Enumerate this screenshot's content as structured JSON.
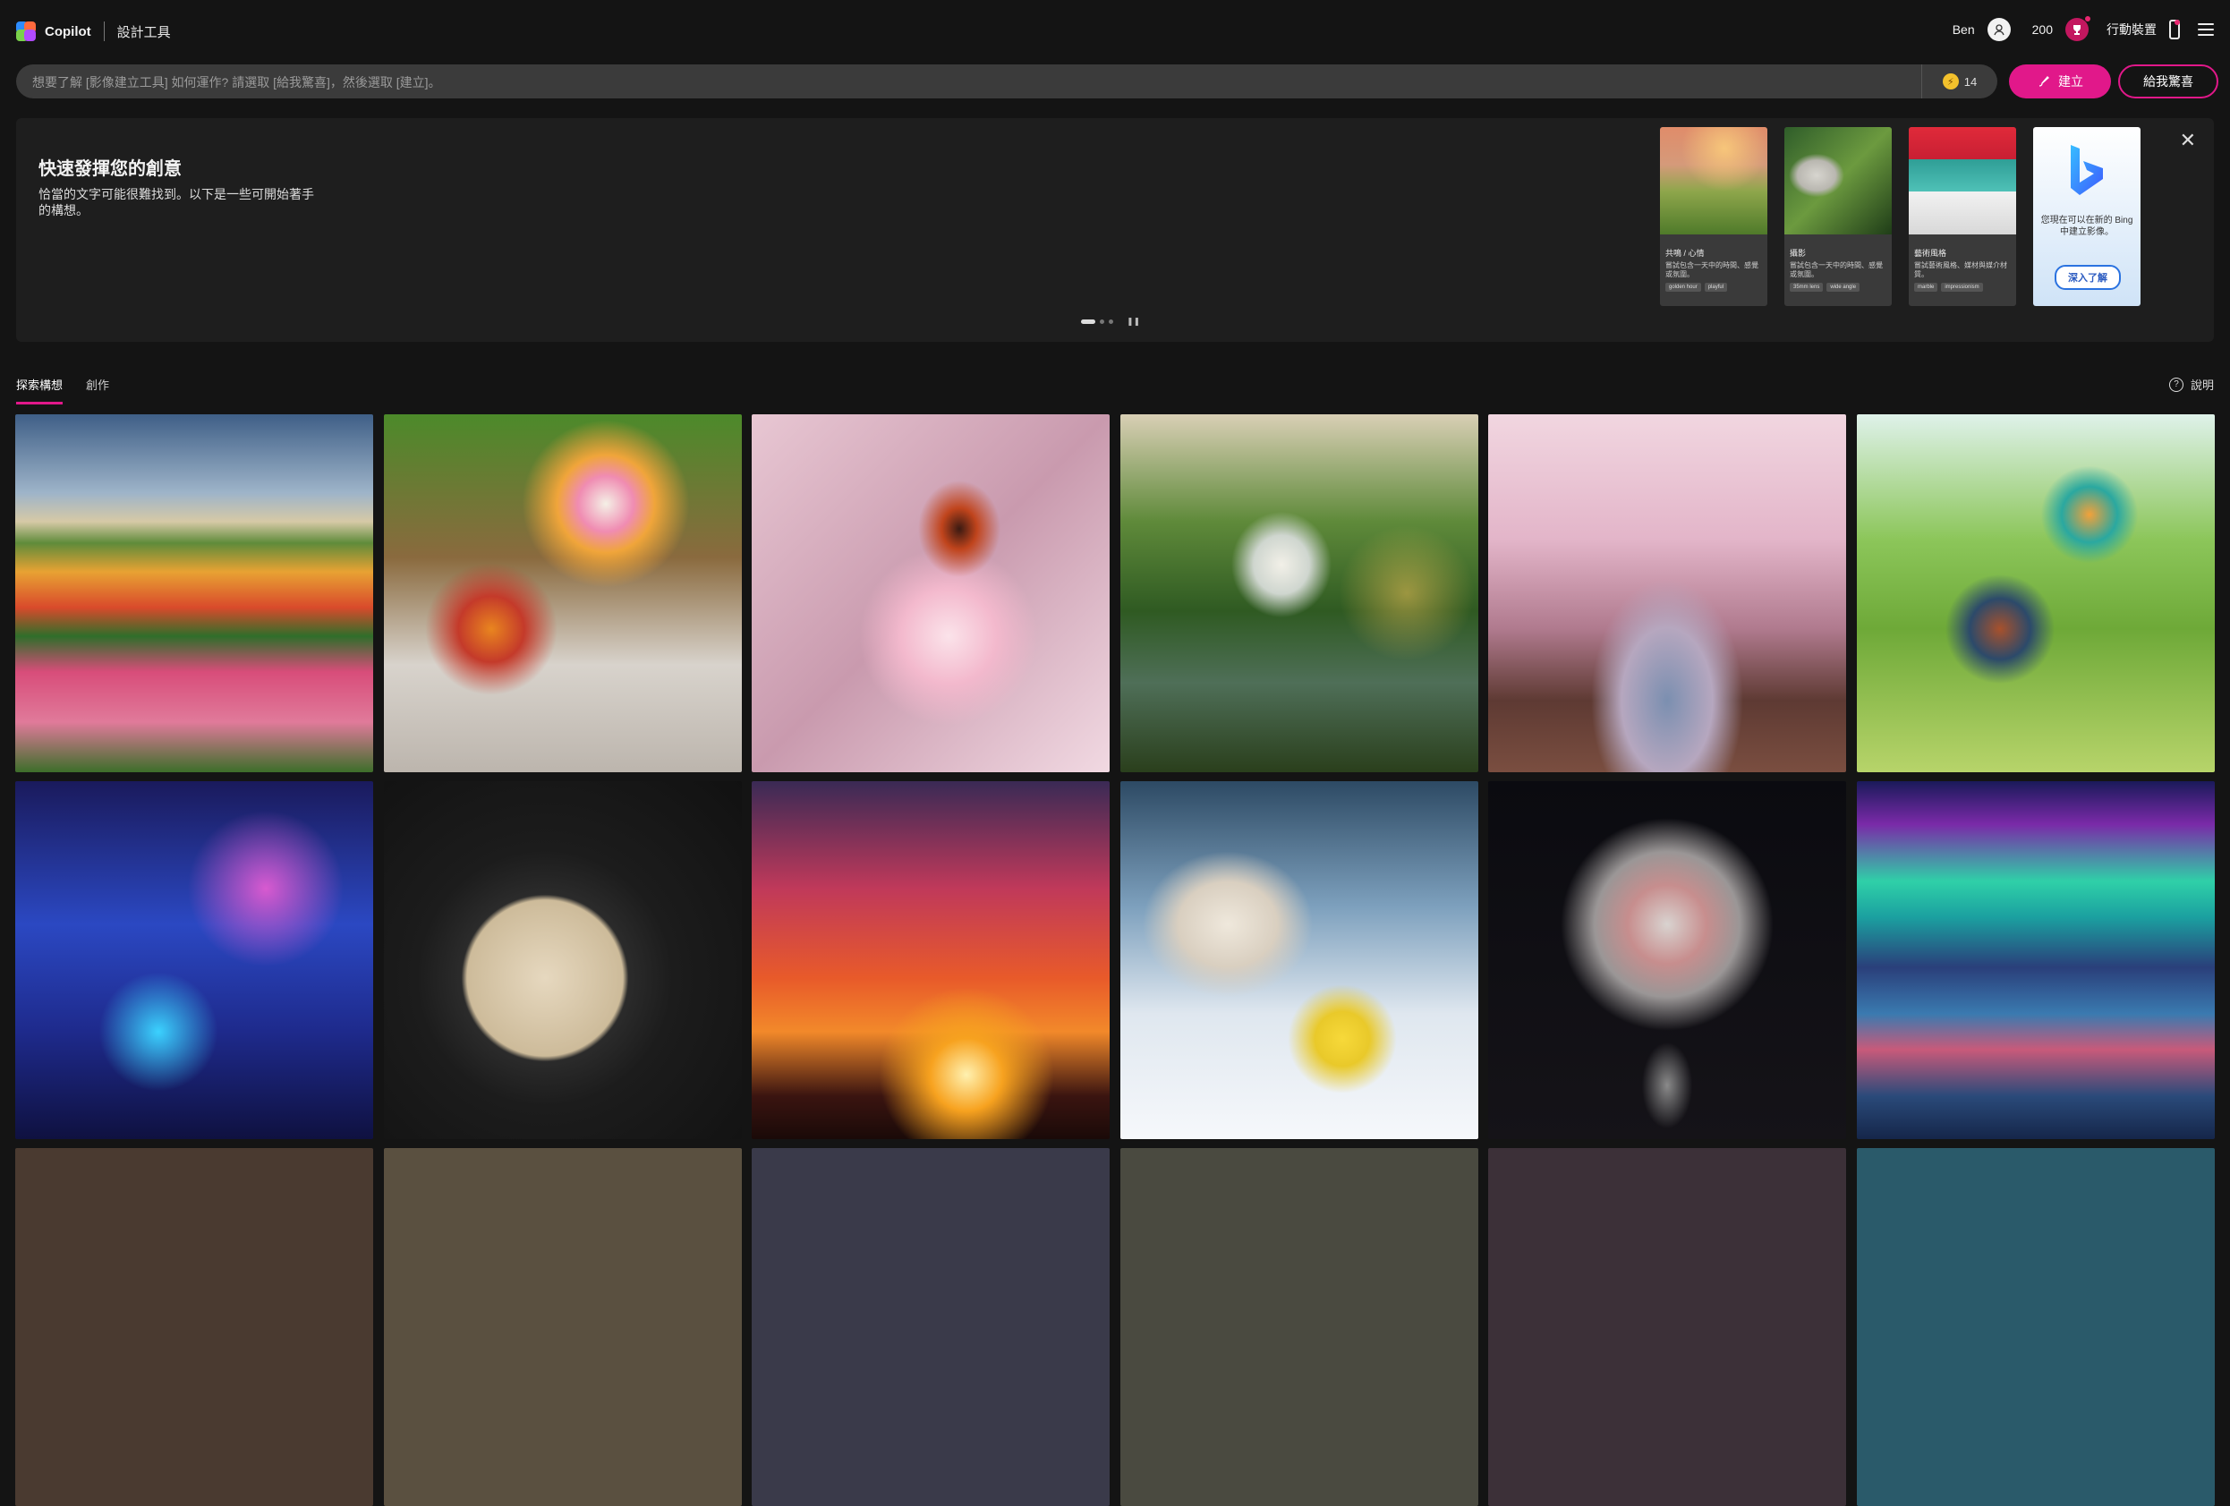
{
  "header": {
    "brand": "Copilot",
    "subtitle": "設計工具",
    "user_name": "Ben",
    "points": "200",
    "mobile_label": "行動裝置"
  },
  "prompt": {
    "placeholder": "想要了解 [影像建立工具] 如何運作? 請選取 [給我驚喜]，然後選取 [建立]。",
    "boosts": "14",
    "create_label": "建立",
    "surprise_label": "給我驚喜"
  },
  "banner": {
    "title": "快速發揮您的創意",
    "description": "恰當的文字可能很難找到。以下是一些可開始著手的構想。",
    "cards": [
      {
        "title": "共鳴 / 心情",
        "text": "嘗試包含一天中的時間、感覺或氛圍。",
        "chips": [
          "golden hour",
          "playful"
        ]
      },
      {
        "title": "攝影",
        "text": "嘗試包含一天中的時間、感覺或氛圍。",
        "chips": [
          "35mm lens",
          "wide angle"
        ]
      },
      {
        "title": "藝術風格",
        "text": "嘗試藝術風格、媒材與媒介材質。",
        "chips": [
          "marble",
          "impressionism"
        ]
      }
    ],
    "bing_text": "您現在可以在新的 Bing 中建立影像。",
    "bing_button": "深入了解"
  },
  "tabs": {
    "explore": "探索構想",
    "creations": "創作",
    "help": "說明"
  },
  "icons": {
    "user": "user-icon",
    "reward": "reward-icon",
    "mobile": "phone-icon",
    "menu": "hamburger-menu-icon",
    "boost": "boost-coin-icon",
    "create": "brush-icon",
    "close": "close-icon",
    "help": "help-icon"
  },
  "colors": {
    "accent": "#e1188a",
    "background": "#141414",
    "prompt_bg": "#3b3b3b"
  }
}
